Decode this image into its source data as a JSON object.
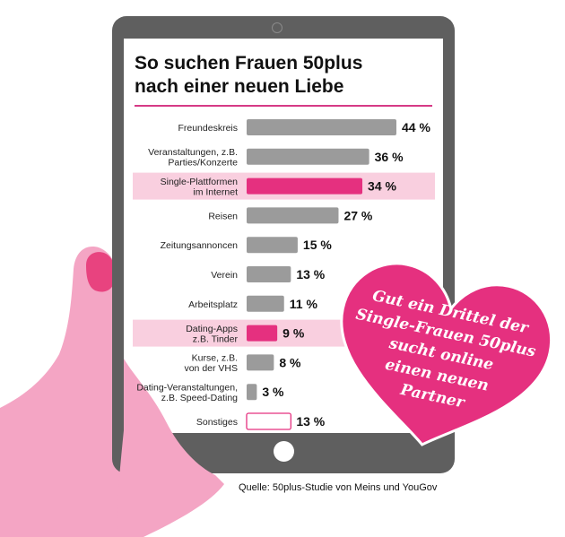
{
  "title_line1": "So suchen Frauen 50plus",
  "title_line2": "nach einer neuen Liebe",
  "source": "Quelle: 50plus-Studie von Meins und YouGov",
  "callout": [
    "Gut ein Drittel der",
    "Single-Frauen 50plus",
    "sucht online",
    "einen neuen",
    "Partner"
  ],
  "colors": {
    "bar": "#9b9b9b",
    "highlight": "#e5307f",
    "highlight_row": "#f9cfdf",
    "title_rule": "#d63a86",
    "heart": "#e5307f",
    "tablet": "#5f5f5f",
    "hand": "#f4a5c4"
  },
  "chart_data": {
    "type": "bar",
    "orientation": "horizontal",
    "unit": "%",
    "xlim": [
      0,
      44
    ],
    "categories": [
      [
        "Freundeskreis"
      ],
      [
        "Veranstaltungen, z.B.",
        "Parties/Konzerte"
      ],
      [
        "Single-Plattformen",
        "im Internet"
      ],
      [
        "Reisen"
      ],
      [
        "Zeitungsannoncen"
      ],
      [
        "Verein"
      ],
      [
        "Arbeitsplatz"
      ],
      [
        "Dating-Apps",
        "z.B. Tinder"
      ],
      [
        "Kurse, z.B.",
        "von der VHS"
      ],
      [
        "Dating-Veranstaltungen,",
        "z.B. Speed-Dating"
      ],
      [
        "Sonstiges"
      ]
    ],
    "values": [
      44,
      36,
      34,
      27,
      15,
      13,
      11,
      9,
      8,
      3,
      13
    ],
    "labels": [
      "44 %",
      "36 %",
      "34 %",
      "27 %",
      "15 %",
      "13 %",
      "11 %",
      "9 %",
      "8 %",
      "3 %",
      "13 %"
    ],
    "highlighted": [
      false,
      false,
      true,
      false,
      false,
      false,
      false,
      true,
      false,
      false,
      false
    ],
    "outlined": [
      false,
      false,
      false,
      false,
      false,
      false,
      false,
      false,
      false,
      false,
      true
    ]
  }
}
